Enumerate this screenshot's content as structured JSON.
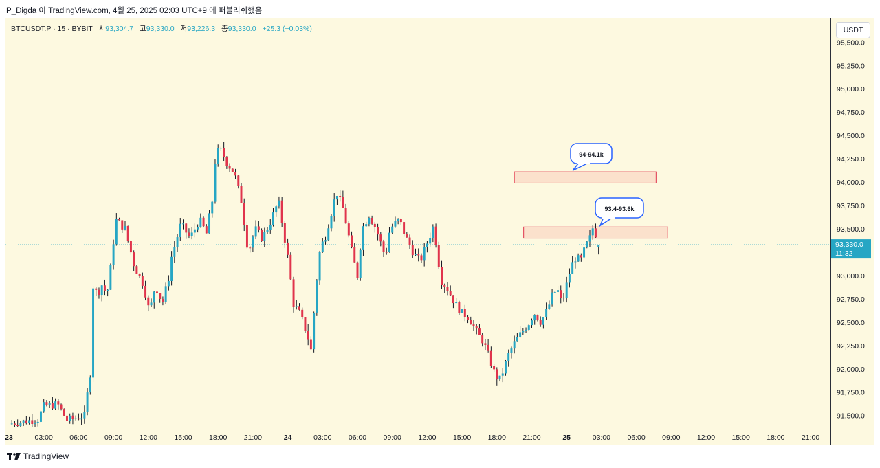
{
  "header": {
    "share_text": "P_Digda 이 TradingView.com, 4월 25, 2025 02:03 UTC+9 에 퍼블리쉬했음"
  },
  "symbol_bar": {
    "symbol": "BTCUSDT.P · 15 · BYBIT",
    "open_label": "시",
    "open": "93,304.7",
    "high_label": "고",
    "high": "93,330.0",
    "low_label": "저",
    "low": "93,226.3",
    "close_label": "종",
    "close": "93,330.0",
    "change": "+25.3 (+0.03%)"
  },
  "currency_button": "USDT",
  "footer": {
    "logo_text": "TradingView"
  },
  "colors": {
    "up": "#26a6c4",
    "down": "#e0344c",
    "background": "#fdf9e0"
  },
  "chart_data": {
    "type": "candlestick",
    "title": "BTCUSDT.P · 15 · BYBIT",
    "ylim": [
      91380,
      95760
    ],
    "y_ticks": [
      "95,500.0",
      "95,250.0",
      "95,000.0",
      "94,750.0",
      "94,500.0",
      "94,250.0",
      "94,000.0",
      "93,750.0",
      "93,500.0",
      "93,250.0",
      "93,000.0",
      "92,750.0",
      "92,500.0",
      "92,250.0",
      "92,000.0",
      "91,750.0",
      "91,500.0"
    ],
    "y_tick_values": [
      95500,
      95250,
      95000,
      94750,
      94500,
      94250,
      94000,
      93750,
      93500,
      93250,
      93000,
      92750,
      92500,
      92250,
      92000,
      91750,
      91500
    ],
    "x_ticks": [
      "23",
      "03:00",
      "06:00",
      "09:00",
      "12:00",
      "15:00",
      "18:00",
      "21:00",
      "24",
      "03:00",
      "06:00",
      "09:00",
      "12:00",
      "15:00",
      "18:00",
      "21:00",
      "25",
      "03:00",
      "06:00",
      "09:00",
      "12:00",
      "15:00",
      "18:00",
      "21:00"
    ],
    "x_tick_hours": [
      0,
      3,
      6,
      9,
      12,
      15,
      18,
      21,
      24,
      27,
      30,
      33,
      36,
      39,
      42,
      45,
      48,
      51,
      54,
      57,
      60,
      63,
      66,
      69
    ],
    "last_price": {
      "value": 93330,
      "label": "93,330.0",
      "countdown": "11:32"
    },
    "zones": [
      {
        "low": 93990,
        "high": 94110,
        "start_hour": 43.5,
        "end_hour": 55.7,
        "note": "94-94.1k"
      },
      {
        "low": 93400,
        "high": 93520,
        "start_hour": 44.3,
        "end_hour": 56.7,
        "note": "93.4-93.6k"
      }
    ],
    "anchors": [
      [
        0,
        91410
      ],
      [
        2.5,
        91460
      ],
      [
        3,
        91600
      ],
      [
        4.2,
        91620
      ],
      [
        5,
        91450
      ],
      [
        6.5,
        91500
      ],
      [
        7,
        91950
      ],
      [
        7.2,
        92900
      ],
      [
        7.6,
        92800
      ],
      [
        8,
        92900
      ],
      [
        8.4,
        92800
      ],
      [
        8.6,
        92900
      ],
      [
        9.2,
        93600
      ],
      [
        10,
        93500
      ],
      [
        10.8,
        93100
      ],
      [
        11.6,
        92900
      ],
      [
        12.1,
        92600
      ],
      [
        12.6,
        92900
      ],
      [
        13.2,
        92700
      ],
      [
        13.8,
        93000
      ],
      [
        14,
        93200
      ],
      [
        14.8,
        93550
      ],
      [
        15.6,
        93400
      ],
      [
        16.4,
        93600
      ],
      [
        17,
        93450
      ],
      [
        17.5,
        93800
      ],
      [
        17.8,
        94300
      ],
      [
        18.2,
        94350
      ],
      [
        18.8,
        94200
      ],
      [
        19.4,
        94100
      ],
      [
        20,
        93800
      ],
      [
        20.6,
        93250
      ],
      [
        21.2,
        93500
      ],
      [
        21.8,
        93400
      ],
      [
        22.6,
        93600
      ],
      [
        23.2,
        93800
      ],
      [
        23.6,
        93500
      ],
      [
        24,
        93200
      ],
      [
        24.5,
        92700
      ],
      [
        25,
        92600
      ],
      [
        25.6,
        92400
      ],
      [
        26,
        92200
      ],
      [
        26.4,
        92850
      ],
      [
        26.8,
        93300
      ],
      [
        27.2,
        93400
      ],
      [
        27.6,
        93600
      ],
      [
        28.2,
        93900
      ],
      [
        28.8,
        93700
      ],
      [
        29.2,
        93450
      ],
      [
        29.6,
        93200
      ],
      [
        30,
        93000
      ],
      [
        30.4,
        93500
      ],
      [
        31,
        93650
      ],
      [
        31.6,
        93500
      ],
      [
        32,
        93350
      ],
      [
        32.4,
        93200
      ],
      [
        32.8,
        93500
      ],
      [
        33.6,
        93600
      ],
      [
        34.2,
        93400
      ],
      [
        34.8,
        93250
      ],
      [
        35.4,
        93150
      ],
      [
        36,
        93350
      ],
      [
        36.6,
        93550
      ],
      [
        36.8,
        93300
      ],
      [
        37.2,
        92950
      ],
      [
        37.8,
        92850
      ],
      [
        38.4,
        92700
      ],
      [
        39,
        92600
      ],
      [
        39.6,
        92550
      ],
      [
        40.2,
        92400
      ],
      [
        40.8,
        92300
      ],
      [
        41.4,
        92100
      ],
      [
        41.8,
        91950
      ],
      [
        42.2,
        91870
      ],
      [
        42.6,
        92000
      ],
      [
        43,
        92150
      ],
      [
        43.6,
        92300
      ],
      [
        44.2,
        92400
      ],
      [
        44.8,
        92500
      ],
      [
        45.2,
        92600
      ],
      [
        45.8,
        92500
      ],
      [
        46.4,
        92650
      ],
      [
        46.8,
        92800
      ],
      [
        47.2,
        92850
      ],
      [
        47.6,
        92700
      ],
      [
        48,
        92900
      ],
      [
        48.4,
        93100
      ],
      [
        48.8,
        93200
      ],
      [
        49.2,
        93150
      ],
      [
        49.6,
        93300
      ],
      [
        50,
        93400
      ],
      [
        50.2,
        93520
      ],
      [
        50.6,
        93420
      ],
      [
        50.8,
        93330
      ]
    ]
  }
}
